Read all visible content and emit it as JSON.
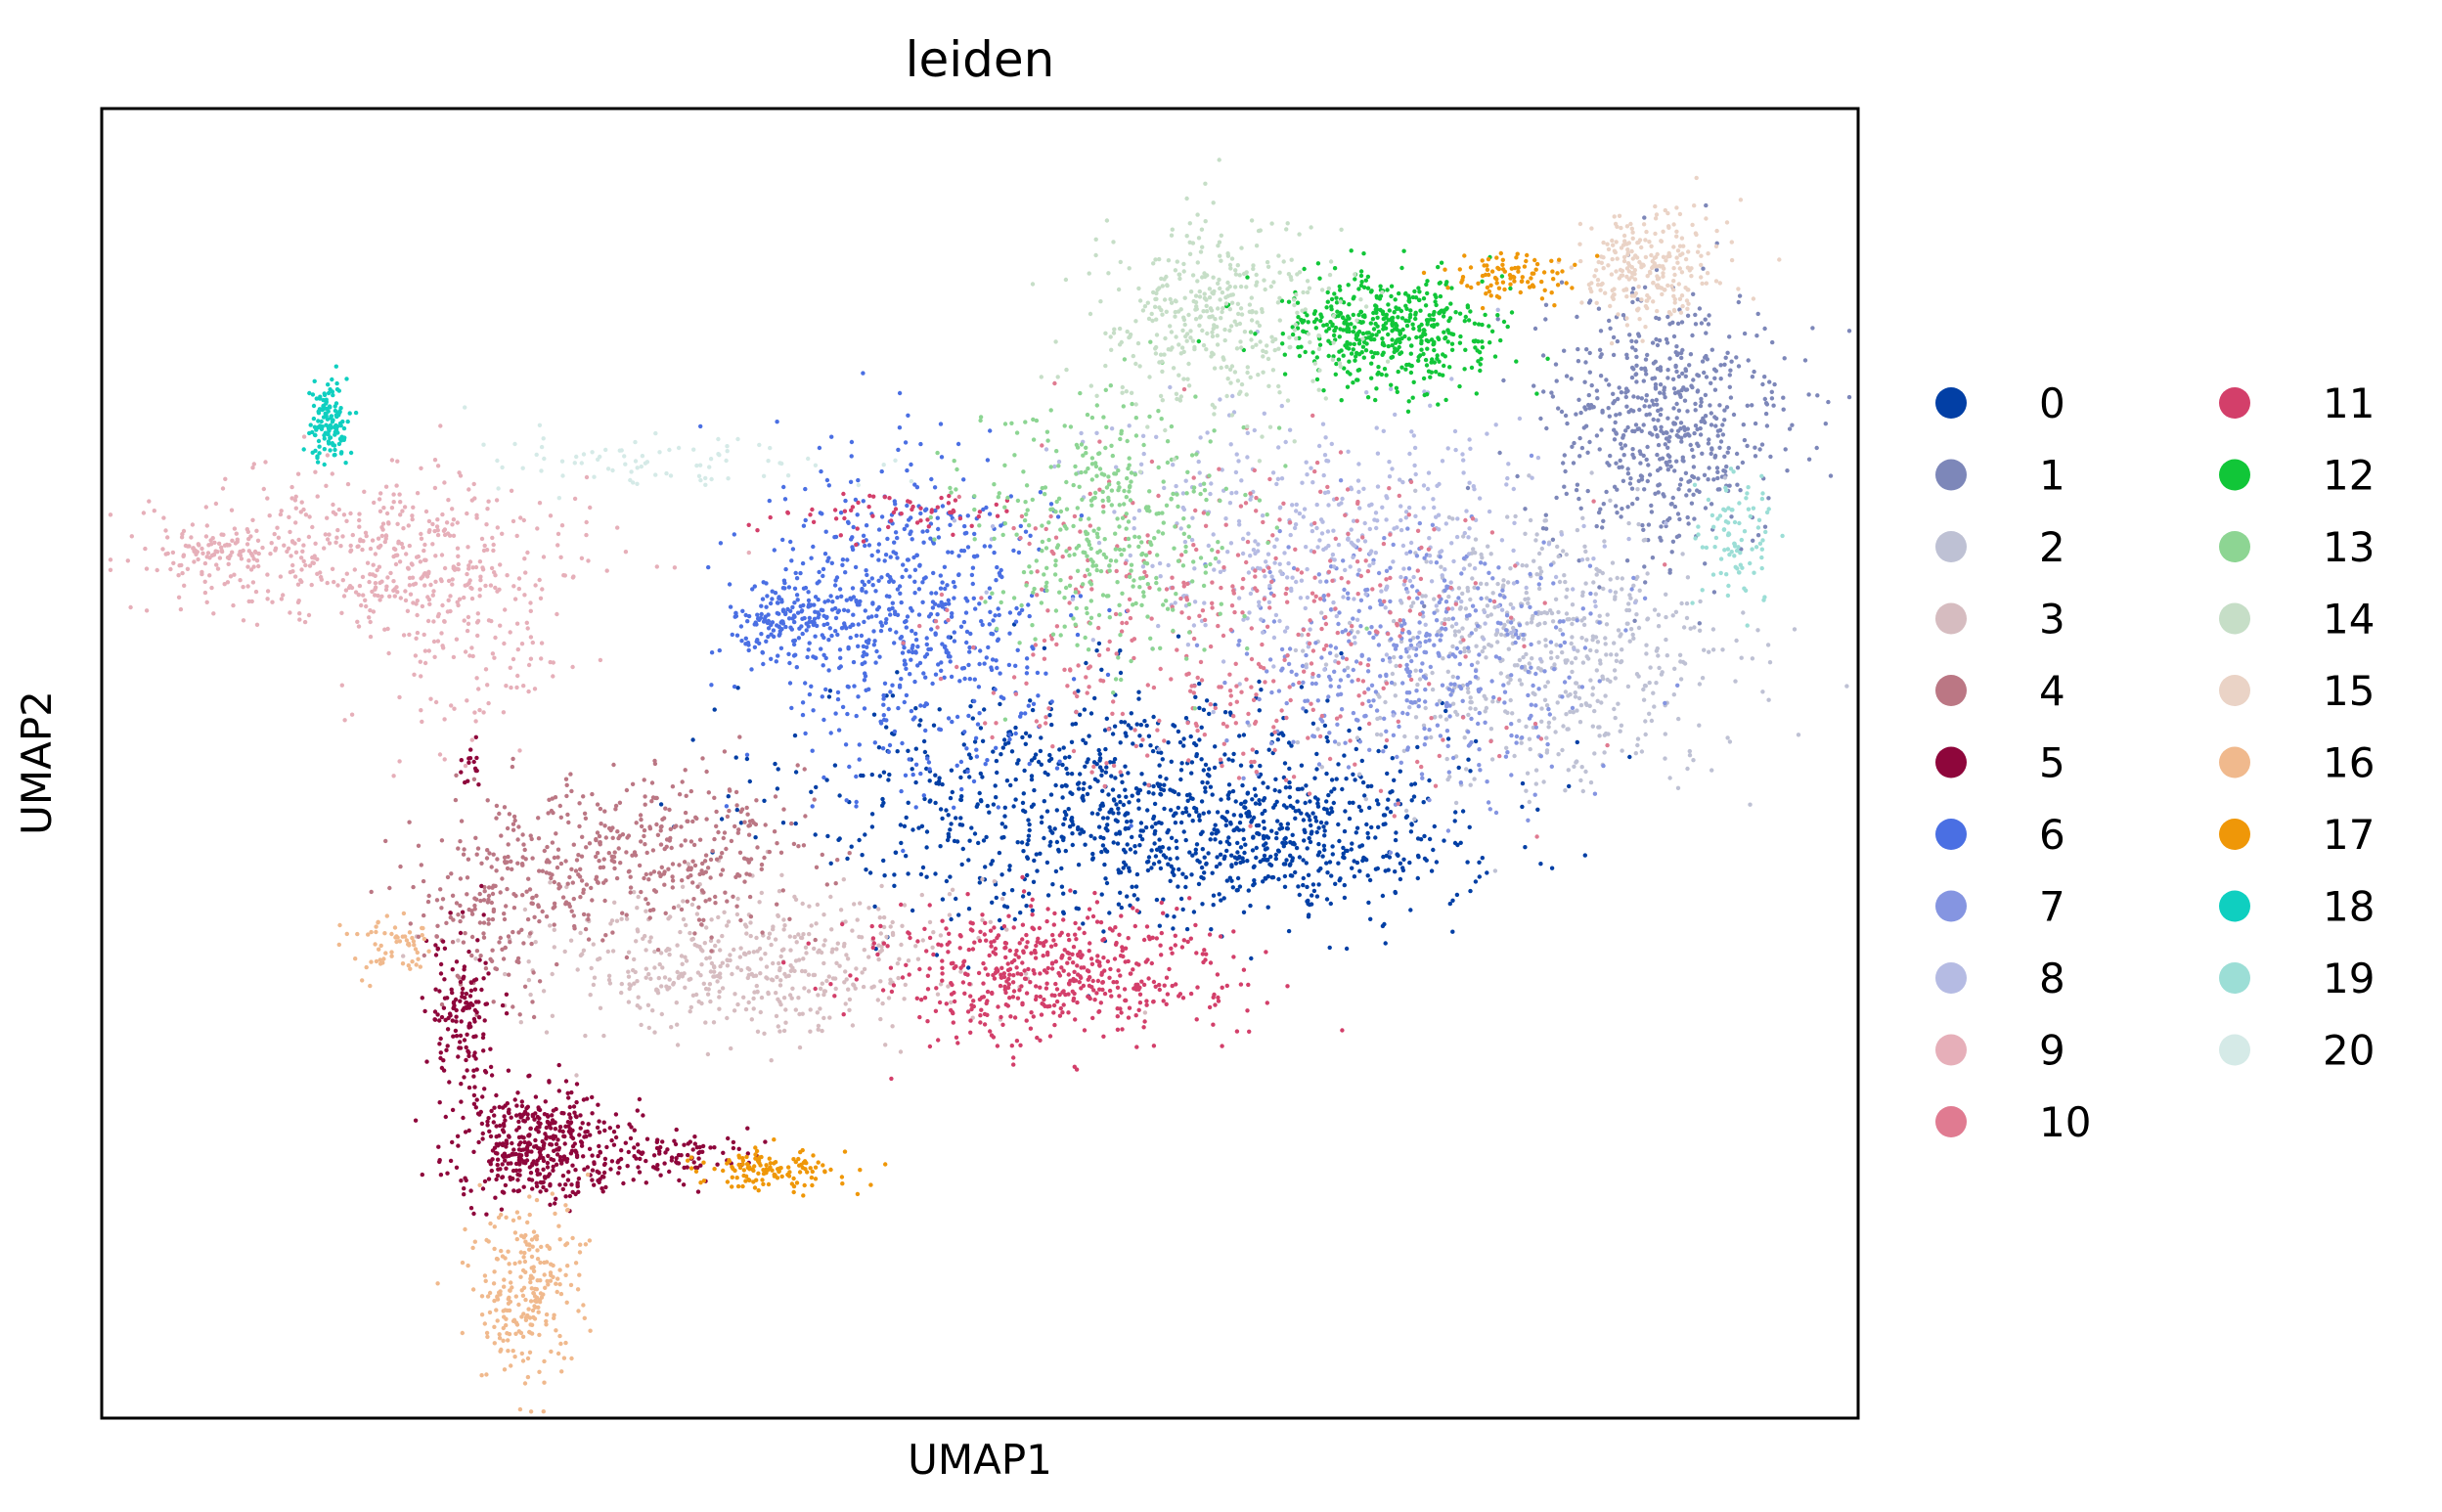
{
  "chart_data": {
    "type": "scatter",
    "title": "leiden",
    "xlabel": "UMAP1",
    "ylabel": "UMAP2",
    "xlim": [
      0,
      100
    ],
    "ylim": [
      0,
      100
    ],
    "grid": false,
    "ticks": false,
    "legend_placement": "right",
    "legend_columns": 2,
    "series": [
      {
        "name": "0",
        "color": "#023fa5",
        "clusters": [
          {
            "x": 58,
            "y": 47,
            "sx": 9,
            "sy": 4.5,
            "n": 900
          },
          {
            "x": 68,
            "y": 44,
            "sx": 5,
            "sy": 3,
            "n": 350
          }
        ]
      },
      {
        "name": "1",
        "color": "#7d87b9",
        "clusters": [
          {
            "x": 89,
            "y": 76,
            "sx": 3.5,
            "sy": 5,
            "n": 600
          }
        ]
      },
      {
        "name": "2",
        "color": "#bec1d4",
        "clusters": [
          {
            "x": 82,
            "y": 58,
            "sx": 5.5,
            "sy": 5,
            "n": 600
          }
        ]
      },
      {
        "name": "3",
        "color": "#d6bcc0",
        "clusters": [
          {
            "x": 37,
            "y": 35,
            "sx": 6,
            "sy": 3,
            "n": 500
          }
        ]
      },
      {
        "name": "4",
        "color": "#bb7784",
        "clusters": [
          {
            "x": 30,
            "y": 43,
            "sx": 5,
            "sy": 3,
            "n": 450
          },
          {
            "x": 22,
            "y": 38,
            "sx": 2,
            "sy": 3,
            "n": 120
          }
        ]
      },
      {
        "name": "5",
        "color": "#8e063b",
        "clusters": [
          {
            "x": 25,
            "y": 21,
            "sx": 2.5,
            "sy": 2,
            "n": 450
          },
          {
            "x": 20.5,
            "y": 31,
            "sx": 1,
            "sy": 3.5,
            "n": 150
          },
          {
            "x": 33,
            "y": 20,
            "sx": 2.5,
            "sy": 0.8,
            "n": 90
          },
          {
            "x": 21,
            "y": 50,
            "sx": 0.3,
            "sy": 1,
            "n": 15
          }
        ]
      },
      {
        "name": "6",
        "color": "#4a6fe3",
        "clusters": [
          {
            "x": 46,
            "y": 61,
            "sx": 4,
            "sy": 6,
            "n": 650
          },
          {
            "x": 39,
            "y": 61,
            "sx": 1.6,
            "sy": 1.5,
            "n": 160
          }
        ]
      },
      {
        "name": "7",
        "color": "#8595e1",
        "clusters": [
          {
            "x": 75,
            "y": 58,
            "sx": 5,
            "sy": 5,
            "n": 450
          }
        ]
      },
      {
        "name": "8",
        "color": "#b5bbe3",
        "clusters": [
          {
            "x": 69,
            "y": 67,
            "sx": 7,
            "sy": 5,
            "n": 450
          }
        ]
      },
      {
        "name": "9",
        "color": "#e6afb9",
        "clusters": [
          {
            "x": 15,
            "y": 66,
            "sx": 6,
            "sy": 3,
            "n": 450
          },
          {
            "x": 21,
            "y": 60,
            "sx": 3,
            "sy": 4,
            "n": 150
          },
          {
            "x": 6,
            "y": 66,
            "sx": 1.5,
            "sy": 0.8,
            "n": 80
          }
        ]
      },
      {
        "name": "10",
        "color": "#e07b91",
        "clusters": [
          {
            "x": 64,
            "y": 61,
            "sx": 8,
            "sy": 6,
            "n": 450
          }
        ]
      },
      {
        "name": "11",
        "color": "#d33f6a",
        "clusters": [
          {
            "x": 54,
            "y": 34,
            "sx": 5,
            "sy": 2.5,
            "n": 550
          },
          {
            "x": 45,
            "y": 69,
            "sx": 4,
            "sy": 0.8,
            "n": 60
          }
        ]
      },
      {
        "name": "12",
        "color": "#11c638",
        "clusters": [
          {
            "x": 73,
            "y": 83,
            "sx": 3,
            "sy": 2.2,
            "n": 500
          }
        ]
      },
      {
        "name": "13",
        "color": "#8dd593",
        "clusters": [
          {
            "x": 57,
            "y": 68,
            "sx": 4,
            "sy": 5,
            "n": 400
          }
        ]
      },
      {
        "name": "14",
        "color": "#c6dec7",
        "clusters": [
          {
            "x": 63,
            "y": 84,
            "sx": 3.5,
            "sy": 4,
            "n": 400
          }
        ]
      },
      {
        "name": "15",
        "color": "#ead3c6",
        "clusters": [
          {
            "x": 88,
            "y": 88,
            "sx": 2,
            "sy": 2.2,
            "n": 250
          }
        ]
      },
      {
        "name": "16",
        "color": "#f0b98d",
        "clusters": [
          {
            "x": 24,
            "y": 10,
            "sx": 1.6,
            "sy": 3.5,
            "n": 250
          },
          {
            "x": 16.5,
            "y": 36,
            "sx": 1.2,
            "sy": 1.2,
            "n": 60
          }
        ]
      },
      {
        "name": "17",
        "color": "#ef9708",
        "clusters": [
          {
            "x": 38,
            "y": 19,
            "sx": 2,
            "sy": 0.8,
            "n": 130
          },
          {
            "x": 80,
            "y": 87,
            "sx": 2,
            "sy": 0.8,
            "n": 90
          }
        ]
      },
      {
        "name": "18",
        "color": "#0fcfc0",
        "clusters": [
          {
            "x": 13,
            "y": 76,
            "sx": 0.6,
            "sy": 1.6,
            "n": 130
          }
        ]
      },
      {
        "name": "19",
        "color": "#9cded6",
        "clusters": [
          {
            "x": 93,
            "y": 67,
            "sx": 1,
            "sy": 2.5,
            "n": 90
          }
        ]
      },
      {
        "name": "20",
        "color": "#d5eae7",
        "clusters": [
          {
            "x": 31,
            "y": 73,
            "sx": 5,
            "sy": 1.2,
            "n": 80
          }
        ]
      }
    ]
  }
}
